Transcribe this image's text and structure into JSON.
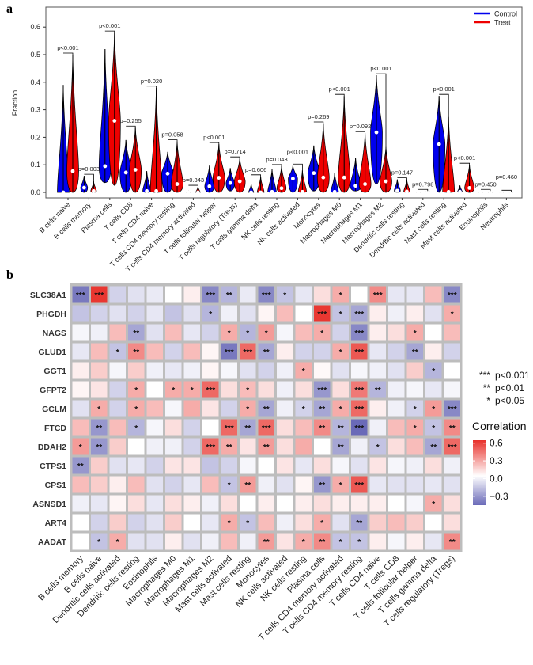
{
  "panel_labels": {
    "a": "a",
    "b": "b"
  },
  "chart_data": [
    {
      "type": "violin",
      "ylabel": "Fraction",
      "ylim": [
        0,
        0.65
      ],
      "yticks": [
        "0.0",
        "0.1",
        "0.2",
        "0.3",
        "0.4",
        "0.5",
        "0.6"
      ],
      "legend": {
        "position": "top-right",
        "entries": [
          {
            "name": "Control",
            "color": "#0000ee"
          },
          {
            "name": "Treat",
            "color": "#ee0000"
          }
        ]
      },
      "categories": [
        "B cells naive",
        "B cells memory",
        "Plasma cells",
        "T cells CD8",
        "T cells CD4 naive",
        "T cells CD4 memory resting",
        "T cells CD4 memory activated",
        "T cells follicular helper",
        "T cells regulatory (Tregs)",
        "T cells gamma delta",
        "NK cells resting",
        "NK cells activated",
        "Monocytes",
        "Macrophages M0",
        "Macrophages M1",
        "Macrophages M2",
        "Dendritic cells resting",
        "Dendritic cells activated",
        "Mast cells resting",
        "Mast cells activated",
        "Eosinophils",
        "Neutrophils"
      ],
      "p_values": [
        "p<0.001",
        "p=0.003",
        "p<0.001",
        "p=0.255",
        "p=0.020",
        "p=0.058",
        "p=0.343",
        "p<0.001",
        "p=0.714",
        "p=0.606",
        "p=0.043",
        "p<0.001",
        "p=0.269",
        "p<0.001",
        "p=0.092",
        "p<0.001",
        "p=0.147",
        "p=0.798",
        "p<0.001",
        "p<0.001",
        "p=0.450",
        "p=0.460"
      ],
      "control": [
        {
          "min": 0,
          "median": 0.0,
          "max": 0.39
        },
        {
          "min": 0,
          "median": 0.017,
          "max": 0.06
        },
        {
          "min": 0.035,
          "median": 0.095,
          "max": 0.52
        },
        {
          "min": 0,
          "median": 0.072,
          "max": 0.19
        },
        {
          "min": 0,
          "median": 0.005,
          "max": 0.077
        },
        {
          "min": 0,
          "median": 0.068,
          "max": 0.147
        },
        {
          "min": 0,
          "median": 0.0,
          "max": 0.005
        },
        {
          "min": 0,
          "median": 0.022,
          "max": 0.097
        },
        {
          "min": 0.005,
          "median": 0.034,
          "max": 0.088
        },
        {
          "min": 0,
          "median": 0.0,
          "max": 0.03
        },
        {
          "min": 0,
          "median": 0.002,
          "max": 0.085
        },
        {
          "min": 0,
          "median": 0.05,
          "max": 0.097
        },
        {
          "min": 0.005,
          "median": 0.07,
          "max": 0.17
        },
        {
          "min": 0,
          "median": 0.002,
          "max": 0.07
        },
        {
          "min": 0.005,
          "median": 0.024,
          "max": 0.125
        },
        {
          "min": 0.03,
          "median": 0.218,
          "max": 0.425
        },
        {
          "min": 0,
          "median": 0.006,
          "max": 0.047
        },
        {
          "min": 0,
          "median": 0.0,
          "max": 0.002
        },
        {
          "min": 0,
          "median": 0.175,
          "max": 0.35
        },
        {
          "min": 0,
          "median": 0.002,
          "max": 0.025
        },
        {
          "min": 0,
          "median": 0.0,
          "max": 0.004
        },
        {
          "min": 0,
          "median": 0.0,
          "max": 0.002
        }
      ],
      "treat": [
        {
          "min": 0,
          "median": 0.077,
          "max": 0.5
        },
        {
          "min": 0,
          "median": 0.005,
          "max": 0.04
        },
        {
          "min": 0.025,
          "median": 0.26,
          "max": 0.58
        },
        {
          "min": 0,
          "median": 0.082,
          "max": 0.235
        },
        {
          "min": 0,
          "median": 0.005,
          "max": 0.38
        },
        {
          "min": 0,
          "median": 0.03,
          "max": 0.185
        },
        {
          "min": 0,
          "median": 0.0,
          "max": 0.02
        },
        {
          "min": 0,
          "median": 0.053,
          "max": 0.175
        },
        {
          "min": 0,
          "median": 0.04,
          "max": 0.123
        },
        {
          "min": 0,
          "median": 0.0,
          "max": 0.058
        },
        {
          "min": 0,
          "median": 0.015,
          "max": 0.095
        },
        {
          "min": 0,
          "median": 0.002,
          "max": 0.08
        },
        {
          "min": 0,
          "median": 0.054,
          "max": 0.25
        },
        {
          "min": 0,
          "median": 0.054,
          "max": 0.35
        },
        {
          "min": 0,
          "median": 0.03,
          "max": 0.215
        },
        {
          "min": 0,
          "median": 0.04,
          "max": 0.165
        },
        {
          "min": 0,
          "median": 0.003,
          "max": 0.047
        },
        {
          "min": 0,
          "median": 0.003,
          "max": 0.005
        },
        {
          "min": 0,
          "median": 0.002,
          "max": 0.275
        },
        {
          "min": 0,
          "median": 0.016,
          "max": 0.1
        },
        {
          "min": 0,
          "median": 0.0,
          "max": 0.005
        },
        {
          "min": 0,
          "median": 0.0,
          "max": 0.002
        }
      ]
    },
    {
      "type": "heatmap",
      "legend_title": "Correlation",
      "colorbar_ticks": [
        "0.6",
        "0.3",
        "0.0",
        "−0.3"
      ],
      "colorbar_values": [
        0.6,
        0.3,
        0.0,
        -0.3
      ],
      "colorbar_range": [
        -0.45,
        0.65
      ],
      "colors": {
        "low": "#6a6ab8",
        "mid": "#ffffff",
        "high": "#e8302a"
      },
      "significance_legend": [
        {
          "stars": "***",
          "label": "p<0.001"
        },
        {
          "stars": "**",
          "label": "p<0.01"
        },
        {
          "stars": "*",
          "label": "p<0.05"
        }
      ],
      "rows": [
        "SLC38A1",
        "PHGDH",
        "NAGS",
        "GLUD1",
        "GGT1",
        "GFPT2",
        "GCLM",
        "FTCD",
        "DDAH2",
        "CTPS1",
        "CPS1",
        "ASNSD1",
        "ART4",
        "AADAT"
      ],
      "columns": [
        "B cells memory",
        "B cells naive",
        "Dendritic cells activated",
        "Dendritic cells resting",
        "Eosinophils",
        "Macrophages M0",
        "Macrophages M1",
        "Macrophages M2",
        "Mast cells activated",
        "Mast cells resting",
        "Monocytes",
        "NK cells activated",
        "NK cells resting",
        "Plasma cells",
        "T cells CD4 memory activated",
        "T cells CD4 memory resting",
        "T cells CD4 naive",
        "T cells CD8",
        "T cells follicular helper",
        "T cells gamma delta",
        "T cells regulatory (Tregs)"
      ],
      "values": [
        [
          -0.45,
          0.6,
          -0.15,
          -0.1,
          -0.07,
          0.0,
          0.05,
          -0.4,
          -0.25,
          -0.07,
          -0.4,
          -0.2,
          -0.08,
          0.1,
          0.25,
          0.0,
          0.35,
          -0.08,
          -0.08,
          0.2,
          -0.4
        ],
        [
          -0.2,
          -0.15,
          -0.1,
          -0.15,
          -0.08,
          -0.2,
          -0.1,
          -0.25,
          -0.05,
          -0.1,
          0.03,
          0.2,
          0.0,
          0.6,
          -0.2,
          -0.3,
          0.05,
          -0.05,
          0.05,
          -0.1,
          0.25
        ],
        [
          -0.03,
          -0.05,
          0.2,
          -0.3,
          -0.1,
          0.2,
          -0.08,
          -0.15,
          0.25,
          -0.25,
          0.3,
          -0.03,
          0.2,
          0.25,
          -0.15,
          -0.4,
          0.05,
          0.1,
          0.25,
          0.0,
          0.2
        ],
        [
          -0.08,
          0.2,
          -0.2,
          0.35,
          0.2,
          -0.15,
          0.2,
          0.03,
          -0.45,
          0.45,
          -0.3,
          0.05,
          -0.15,
          -0.15,
          0.25,
          0.5,
          -0.08,
          -0.15,
          -0.3,
          0.05,
          -0.15
        ],
        [
          0.05,
          0.15,
          -0.03,
          0.15,
          -0.05,
          -0.08,
          -0.05,
          0.03,
          -0.03,
          -0.1,
          -0.15,
          -0.05,
          0.25,
          0.02,
          -0.1,
          -0.03,
          -0.05,
          -0.1,
          0.15,
          -0.25,
          0.0
        ],
        [
          0.03,
          0.08,
          -0.15,
          0.25,
          0.0,
          0.25,
          0.25,
          0.45,
          0.1,
          0.2,
          0.1,
          -0.05,
          0.1,
          -0.35,
          0.1,
          0.4,
          -0.25,
          -0.05,
          -0.03,
          -0.08,
          -0.03
        ],
        [
          -0.1,
          0.25,
          -0.15,
          0.25,
          0.2,
          -0.03,
          0.25,
          0.08,
          -0.15,
          0.25,
          -0.3,
          -0.05,
          -0.15,
          -0.3,
          0.25,
          0.45,
          0.05,
          -0.05,
          -0.15,
          0.3,
          -0.4
        ],
        [
          0.2,
          -0.35,
          0.2,
          -0.25,
          -0.03,
          0.1,
          -0.15,
          0.0,
          0.45,
          -0.3,
          0.45,
          0.1,
          0.2,
          0.35,
          -0.25,
          -0.55,
          -0.05,
          0.2,
          0.25,
          -0.2,
          0.35
        ],
        [
          0.3,
          -0.35,
          0.15,
          0.0,
          -0.05,
          -0.05,
          -0.15,
          0.45,
          0.25,
          0.08,
          0.3,
          0.1,
          0.25,
          0.0,
          -0.3,
          -0.05,
          -0.2,
          0.1,
          0.2,
          -0.3,
          0.45
        ],
        [
          -0.35,
          0.15,
          -0.1,
          -0.08,
          -0.15,
          0.08,
          0.08,
          -0.2,
          -0.15,
          -0.03,
          0.0,
          0.08,
          -0.08,
          0.1,
          -0.03,
          -0.1,
          0.08,
          -0.03,
          -0.05,
          0.1,
          -0.05
        ],
        [
          0.2,
          0.15,
          0.05,
          0.2,
          -0.1,
          -0.15,
          -0.08,
          0.2,
          -0.2,
          0.3,
          -0.05,
          -0.1,
          0.03,
          -0.35,
          0.25,
          0.5,
          -0.08,
          -0.1,
          -0.1,
          -0.08,
          -0.1
        ],
        [
          -0.05,
          -0.08,
          0.03,
          0.1,
          -0.08,
          0.1,
          0.05,
          -0.05,
          0.1,
          0.0,
          0.05,
          0.0,
          0.05,
          0.1,
          0.05,
          0.05,
          0.05,
          0.0,
          -0.03,
          0.25,
          0.1
        ],
        [
          0.0,
          -0.15,
          0.15,
          -0.15,
          -0.1,
          0.15,
          0.0,
          -0.08,
          0.25,
          -0.2,
          0.2,
          -0.05,
          0.1,
          0.25,
          -0.1,
          -0.3,
          0.15,
          0.2,
          0.15,
          0.0,
          0.1
        ],
        [
          0.0,
          -0.2,
          0.25,
          -0.1,
          -0.1,
          0.05,
          -0.1,
          -0.05,
          0.2,
          -0.05,
          0.3,
          0.08,
          0.25,
          0.35,
          -0.2,
          -0.2,
          0.05,
          -0.03,
          0.05,
          -0.08,
          0.35
        ]
      ],
      "stars": [
        [
          "***",
          "***",
          "",
          "",
          "",
          "",
          "",
          "***",
          "**",
          "",
          "***",
          "*",
          "",
          "",
          "*",
          "",
          "***",
          "",
          "",
          "",
          "***"
        ],
        [
          "",
          "",
          "",
          "",
          "",
          "",
          "",
          "*",
          "",
          "",
          "",
          "",
          "",
          "***",
          "*",
          "***",
          "",
          "",
          "",
          "",
          "*"
        ],
        [
          "",
          "",
          "",
          "**",
          "",
          "",
          "",
          "",
          "*",
          "*",
          "*",
          "",
          "",
          "*",
          "",
          "***",
          "",
          "",
          "*",
          "",
          ""
        ],
        [
          "",
          "",
          "*",
          "**",
          "",
          "",
          "",
          "",
          "***",
          "***",
          "**",
          "",
          "",
          "",
          "*",
          "***",
          "",
          "",
          "**",
          "",
          ""
        ],
        [
          "",
          "",
          "",
          "",
          "",
          "",
          "",
          "",
          "",
          "",
          "",
          "",
          "*",
          "",
          "",
          "",
          "",
          "",
          "",
          "*",
          ""
        ],
        [
          "",
          "",
          "",
          "*",
          "",
          "*",
          "*",
          "***",
          "",
          "*",
          "",
          "",
          "",
          "***",
          "",
          "***",
          "**",
          "",
          "",
          "",
          ""
        ],
        [
          "",
          "*",
          "",
          "*",
          "",
          "",
          "",
          "",
          "",
          "*",
          "**",
          "",
          "*",
          "**",
          "*",
          "***",
          "",
          "",
          "*",
          "*",
          "***"
        ],
        [
          "",
          "**",
          "",
          "*",
          "",
          "",
          "",
          "",
          "***",
          "**",
          "***",
          "",
          "",
          "**",
          "**",
          "***",
          "",
          "",
          "*",
          "*",
          "**"
        ],
        [
          "*",
          "**",
          "",
          "",
          "",
          "",
          "",
          "***",
          "**",
          "",
          "**",
          "",
          "",
          "",
          "**",
          "",
          "*",
          "",
          "",
          "**",
          "***"
        ],
        [
          "**",
          "",
          "",
          "",
          "",
          "",
          "",
          "",
          "",
          "",
          "",
          "",
          "",
          "",
          "",
          "",
          "",
          "",
          "",
          "",
          ""
        ],
        [
          "",
          "",
          "",
          "",
          "",
          "",
          "",
          "",
          "*",
          "**",
          "",
          "",
          "",
          "**",
          "*",
          "***",
          "",
          "",
          "",
          "",
          ""
        ],
        [
          "",
          "",
          "",
          "",
          "",
          "",
          "",
          "",
          "",
          "",
          "",
          "",
          "",
          "",
          "",
          "",
          "",
          "",
          "",
          "*",
          ""
        ],
        [
          "",
          "",
          "",
          "",
          "",
          "",
          "",
          "",
          "*",
          "*",
          "",
          "",
          "",
          "*",
          "",
          "**",
          "",
          "",
          "",
          "",
          ""
        ],
        [
          "",
          "*",
          "*",
          "",
          "",
          "",
          "",
          "",
          "",
          "",
          "**",
          "",
          "*",
          "**",
          "*",
          "*",
          "",
          "",
          "",
          "",
          "**"
        ]
      ]
    }
  ]
}
